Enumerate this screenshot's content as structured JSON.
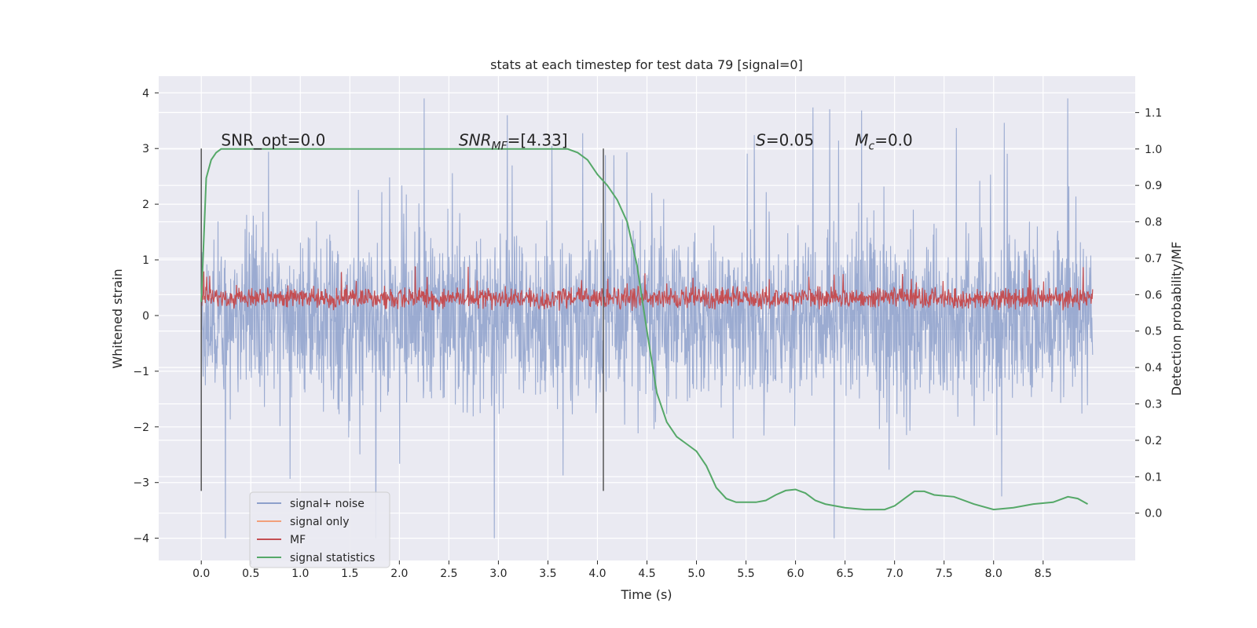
{
  "chart_data": {
    "type": "line",
    "title": "stats at each timestep for test data 79 [signal=0]",
    "xlabel": "Time (s)",
    "ylabel": "Whitened strain",
    "y2label": "Detection probability/MF",
    "xlim": [
      -0.43,
      9.43
    ],
    "ylim": [
      -4.4,
      4.3
    ],
    "y2lim": [
      -0.13,
      1.2
    ],
    "xticks": [
      "0.0",
      "0.5",
      "1.0",
      "1.5",
      "2.0",
      "2.5",
      "3.0",
      "3.5",
      "4.0",
      "4.5",
      "5.0",
      "5.5",
      "6.0",
      "6.5",
      "7.0",
      "7.5",
      "8.0",
      "8.5"
    ],
    "yticks": [
      "4",
      "3",
      "2",
      "1",
      "0",
      "−1",
      "−2",
      "−3",
      "−4"
    ],
    "y2ticks": [
      "1.1",
      "1.0",
      "0.9",
      "0.8",
      "0.7",
      "0.6",
      "0.5",
      "0.4",
      "0.3",
      "0.2",
      "0.1",
      "0.0"
    ],
    "grid": true,
    "legend_position": "lower-left",
    "series": [
      {
        "name": "signal+ noise",
        "color": "#8da0cb",
        "axis": "left",
        "description_range": [
          -4.0,
          3.9
        ],
        "x_range": [
          0.0,
          9.0
        ]
      },
      {
        "name": "signal only",
        "color": "#f2a07a",
        "axis": "left",
        "values": []
      },
      {
        "name": "MF",
        "color": "#c44e52",
        "axis": "left",
        "description_range": [
          0.0,
          1.0
        ],
        "x_range": [
          0.0,
          9.0
        ]
      },
      {
        "name": "signal statistics",
        "color": "#55a868",
        "axis": "right",
        "x": [
          0.0,
          0.05,
          0.1,
          0.15,
          0.2,
          0.3,
          0.5,
          1.0,
          1.5,
          2.0,
          2.5,
          3.0,
          3.5,
          3.7,
          3.8,
          3.9,
          4.0,
          4.1,
          4.2,
          4.3,
          4.4,
          4.5,
          4.6,
          4.7,
          4.8,
          4.9,
          5.0,
          5.1,
          5.2,
          5.3,
          5.4,
          5.5,
          5.6,
          5.7,
          5.8,
          5.9,
          6.0,
          6.1,
          6.2,
          6.3,
          6.5,
          6.7,
          6.9,
          7.0,
          7.1,
          7.2,
          7.3,
          7.4,
          7.6,
          7.8,
          8.0,
          8.2,
          8.4,
          8.6,
          8.75,
          8.85,
          8.95
        ],
        "values": [
          0.58,
          0.92,
          0.97,
          0.99,
          1.0,
          1.0,
          1.0,
          1.0,
          1.0,
          1.0,
          1.0,
          1.0,
          1.0,
          1.0,
          0.99,
          0.97,
          0.93,
          0.9,
          0.86,
          0.8,
          0.68,
          0.5,
          0.33,
          0.25,
          0.21,
          0.19,
          0.17,
          0.13,
          0.07,
          0.04,
          0.03,
          0.03,
          0.03,
          0.035,
          0.05,
          0.062,
          0.065,
          0.055,
          0.035,
          0.025,
          0.015,
          0.01,
          0.01,
          0.02,
          0.04,
          0.06,
          0.06,
          0.05,
          0.045,
          0.025,
          0.01,
          0.015,
          0.025,
          0.03,
          0.045,
          0.04,
          0.025
        ]
      }
    ],
    "vlines": [
      {
        "x": 0.0,
        "ymin": -3.15,
        "ymax": 3.0
      },
      {
        "x": 4.06,
        "ymin": -3.15,
        "ymax": 3.0
      }
    ],
    "annotations": [
      {
        "x": 0.2,
        "y": 3.05,
        "segments": [
          {
            "text": "SNR_opt=0.0",
            "italic": false
          }
        ]
      },
      {
        "x": 2.6,
        "y": 3.05,
        "segments": [
          {
            "text": "SNR",
            "italic": true
          },
          {
            "text": "MF",
            "italic": true,
            "sub": true
          },
          {
            "text": "=[4.33]",
            "italic": false
          }
        ]
      },
      {
        "x": 5.6,
        "y": 3.05,
        "segments": [
          {
            "text": "S",
            "italic": true
          },
          {
            "text": "=0.05",
            "italic": false
          }
        ]
      },
      {
        "x": 6.6,
        "y": 3.05,
        "segments": [
          {
            "text": "M",
            "italic": true
          },
          {
            "text": "c",
            "italic": true,
            "sub": true
          },
          {
            "text": "=0.0",
            "italic": false
          }
        ]
      }
    ]
  }
}
